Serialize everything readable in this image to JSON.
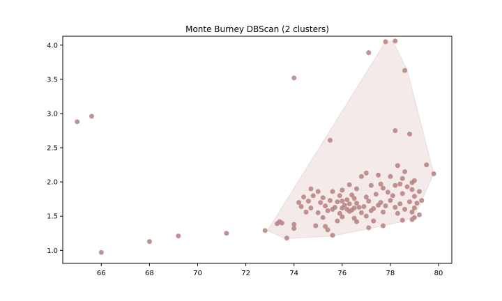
{
  "chart_data": {
    "type": "scatter",
    "title": "Monte Burney DBScan (2 clusters)",
    "xlabel": "",
    "ylabel": "",
    "xlim": [
      64.4,
      80.55
    ],
    "ylim": [
      0.81,
      4.13
    ],
    "xticks": [
      66,
      68,
      70,
      72,
      74,
      76,
      78,
      80
    ],
    "yticks": [
      1.0,
      1.5,
      2.0,
      2.5,
      3.0,
      3.5,
      4.0
    ],
    "grid": false,
    "point_color": "#b98684",
    "hull_fill": "#f4eaea",
    "hull_stroke": "#eadada",
    "hull": [
      [
        77.8,
        4.05
      ],
      [
        78.1,
        4.06
      ],
      [
        78.7,
        3.63
      ],
      [
        79.8,
        2.12
      ],
      [
        79.0,
        1.5
      ],
      [
        78.5,
        1.42
      ],
      [
        75.6,
        1.21
      ],
      [
        74.0,
        1.18
      ],
      [
        73.6,
        1.18
      ],
      [
        72.9,
        1.29
      ]
    ],
    "points": [
      [
        65.0,
        2.88
      ],
      [
        65.6,
        2.96
      ],
      [
        66.0,
        0.97
      ],
      [
        68.0,
        1.13
      ],
      [
        69.2,
        1.21
      ],
      [
        71.2,
        1.25
      ],
      [
        72.8,
        1.29
      ],
      [
        73.3,
        1.39
      ],
      [
        73.4,
        1.42
      ],
      [
        73.5,
        1.4
      ],
      [
        73.7,
        1.18
      ],
      [
        74.0,
        1.32
      ],
      [
        74.0,
        1.38
      ],
      [
        74.0,
        3.52
      ],
      [
        75.5,
        2.61
      ],
      [
        77.1,
        3.89
      ],
      [
        77.8,
        4.05
      ],
      [
        78.2,
        4.06
      ],
      [
        78.6,
        3.63
      ],
      [
        78.2,
        2.75
      ],
      [
        78.8,
        2.7
      ],
      [
        79.5,
        2.25
      ],
      [
        79.8,
        2.12
      ],
      [
        78.3,
        2.24
      ],
      [
        78.6,
        2.15
      ],
      [
        77.0,
        2.13
      ],
      [
        76.8,
        2.08
      ],
      [
        77.5,
        2.1
      ],
      [
        78.0,
        2.08
      ],
      [
        78.5,
        2.05
      ],
      [
        79.0,
        2.02
      ],
      [
        74.7,
        1.9
      ],
      [
        76.3,
        1.96
      ],
      [
        77.2,
        1.95
      ],
      [
        77.6,
        1.97
      ],
      [
        78.7,
        1.93
      ],
      [
        75.0,
        1.86
      ],
      [
        75.6,
        1.86
      ],
      [
        76.0,
        1.88
      ],
      [
        76.6,
        1.9
      ],
      [
        77.7,
        1.91
      ],
      [
        78.9,
        1.89
      ],
      [
        79.2,
        1.86
      ],
      [
        74.4,
        1.78
      ],
      [
        74.8,
        1.8
      ],
      [
        75.2,
        1.77
      ],
      [
        75.9,
        1.8
      ],
      [
        76.4,
        1.81
      ],
      [
        77.0,
        1.78
      ],
      [
        77.4,
        1.82
      ],
      [
        78.1,
        1.8
      ],
      [
        78.5,
        1.83
      ],
      [
        79.0,
        1.79
      ],
      [
        79.3,
        1.73
      ],
      [
        74.2,
        1.7
      ],
      [
        74.6,
        1.72
      ],
      [
        75.1,
        1.7
      ],
      [
        75.5,
        1.73
      ],
      [
        75.8,
        1.71
      ],
      [
        76.2,
        1.74
      ],
      [
        76.6,
        1.69
      ],
      [
        77.1,
        1.72
      ],
      [
        77.6,
        1.7
      ],
      [
        78.0,
        1.73
      ],
      [
        78.4,
        1.68
      ],
      [
        78.8,
        1.71
      ],
      [
        74.3,
        1.64
      ],
      [
        74.7,
        1.62
      ],
      [
        75.3,
        1.65
      ],
      [
        75.7,
        1.63
      ],
      [
        76.1,
        1.66
      ],
      [
        76.5,
        1.62
      ],
      [
        76.9,
        1.64
      ],
      [
        77.3,
        1.61
      ],
      [
        77.8,
        1.65
      ],
      [
        78.2,
        1.63
      ],
      [
        78.6,
        1.6
      ],
      [
        79.0,
        1.62
      ],
      [
        74.5,
        1.56
      ],
      [
        75.0,
        1.55
      ],
      [
        75.4,
        1.58
      ],
      [
        75.9,
        1.54
      ],
      [
        76.3,
        1.57
      ],
      [
        76.8,
        1.55
      ],
      [
        77.2,
        1.58
      ],
      [
        77.7,
        1.56
      ],
      [
        78.3,
        1.54
      ],
      [
        78.9,
        1.56
      ],
      [
        79.2,
        1.52
      ],
      [
        75.2,
        1.48
      ],
      [
        76.0,
        1.49
      ],
      [
        76.5,
        1.47
      ],
      [
        77.0,
        1.5
      ],
      [
        75.8,
        1.43
      ],
      [
        76.6,
        1.42
      ],
      [
        77.3,
        1.43
      ],
      [
        78.5,
        1.44
      ],
      [
        78.9,
        1.45
      ],
      [
        74.9,
        1.36
      ],
      [
        75.3,
        1.35
      ],
      [
        75.4,
        1.3
      ],
      [
        77.1,
        1.33
      ],
      [
        77.7,
        1.36
      ],
      [
        75.6,
        1.22
      ],
      [
        76.0,
        1.62
      ],
      [
        76.2,
        1.6
      ],
      [
        76.4,
        1.59
      ],
      [
        76.7,
        1.63
      ],
      [
        77.5,
        1.66
      ],
      [
        76.0,
        1.72
      ],
      [
        76.5,
        1.76
      ],
      [
        77.9,
        1.85
      ],
      [
        78.2,
        1.95
      ],
      [
        78.4,
        1.97
      ],
      [
        78.9,
        1.99
      ],
      [
        79.1,
        1.69
      ],
      [
        79.0,
        1.48
      ],
      [
        76.3,
        1.68
      ],
      [
        75.6,
        1.6
      ]
    ]
  }
}
